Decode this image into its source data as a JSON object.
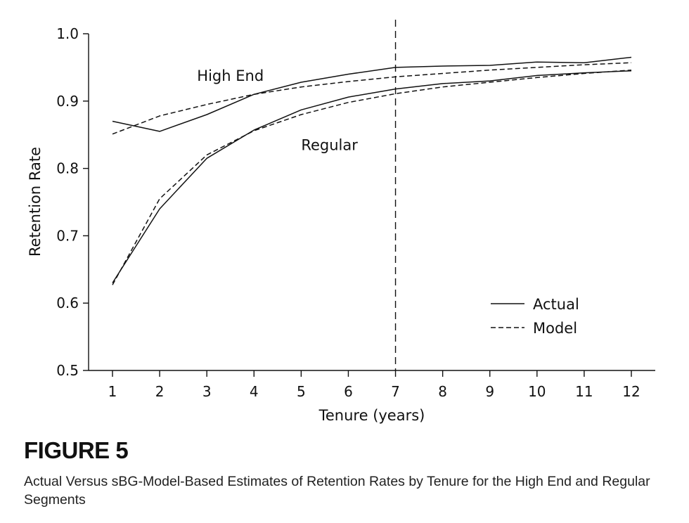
{
  "figure": {
    "label": "FIGURE 5",
    "caption": "Actual Versus sBG-Model-Based Estimates of Retention Rates by Tenure for the High End and Regular Segments"
  },
  "chart_data": {
    "type": "line",
    "title": "",
    "xlabel": "Tenure (years)",
    "ylabel": "Retention Rate",
    "x": [
      1,
      2,
      3,
      4,
      5,
      6,
      7,
      8,
      9,
      10,
      11,
      12
    ],
    "xlim": [
      0.5,
      12.5
    ],
    "ylim": [
      0.5,
      1.0
    ],
    "yticks": [
      "0.5",
      "0.6",
      "0.7",
      "0.8",
      "0.9",
      "1.0"
    ],
    "xticks": [
      "1",
      "2",
      "3",
      "4",
      "5",
      "6",
      "7",
      "8",
      "9",
      "10",
      "11",
      "12"
    ],
    "grid": false,
    "series": [
      {
        "name": "High End Actual",
        "segment": "High End",
        "kind": "Actual",
        "style": "solid",
        "values": [
          0.87,
          0.855,
          0.88,
          0.91,
          0.928,
          0.94,
          0.95,
          0.952,
          0.953,
          0.958,
          0.957,
          0.965
        ]
      },
      {
        "name": "High End Model",
        "segment": "High End",
        "kind": "Model",
        "style": "dashed",
        "values": [
          0.851,
          0.878,
          0.895,
          0.91,
          0.921,
          0.929,
          0.936,
          0.941,
          0.946,
          0.95,
          0.954,
          0.957
        ]
      },
      {
        "name": "Regular Actual",
        "segment": "Regular",
        "kind": "Actual",
        "style": "solid",
        "values": [
          0.63,
          0.74,
          0.815,
          0.857,
          0.887,
          0.906,
          0.918,
          0.926,
          0.93,
          0.938,
          0.942,
          0.945
        ]
      },
      {
        "name": "Regular Model",
        "segment": "Regular",
        "kind": "Model",
        "style": "dashed",
        "values": [
          0.627,
          0.755,
          0.82,
          0.856,
          0.88,
          0.898,
          0.911,
          0.921,
          0.928,
          0.935,
          0.941,
          0.946
        ]
      }
    ],
    "vertical_reference": {
      "x": 7,
      "style": "dashed"
    },
    "annotations": [
      {
        "text": "High End",
        "x": 3.5,
        "y": 0.93
      },
      {
        "text": "Regular",
        "x": 5.6,
        "y": 0.827
      }
    ],
    "legend": {
      "position": "bottom-right",
      "entries": [
        {
          "label": "Actual",
          "style": "solid"
        },
        {
          "label": "Model",
          "style": "dashed"
        }
      ]
    }
  }
}
